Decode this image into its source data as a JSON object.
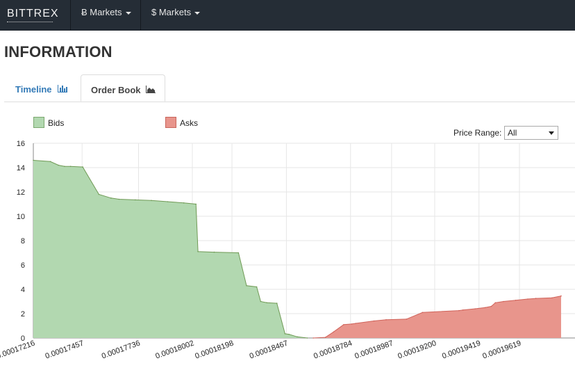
{
  "navbar": {
    "brand": "BITTREX",
    "menus": [
      {
        "label": "Ƀ Markets"
      },
      {
        "label": "$ Markets"
      }
    ]
  },
  "page": {
    "title": "INFORMATION"
  },
  "tabs": [
    {
      "label": "Timeline",
      "icon": "bar-chart-icon",
      "active": false
    },
    {
      "label": "Order Book",
      "icon": "area-chart-icon",
      "active": true
    }
  ],
  "controls": {
    "price_range_label": "Price Range:",
    "price_range_value": "All"
  },
  "colors": {
    "navbar": "#252d36",
    "bids_fill": "#b2d8b0",
    "bids_stroke": "#6f9a55",
    "asks_fill": "#e8958c",
    "asks_stroke": "#d0635a",
    "link": "#337ab7"
  },
  "chart_data": {
    "type": "area",
    "ylim": [
      0,
      16
    ],
    "yticks": [
      0,
      2,
      4,
      6,
      8,
      10,
      12,
      14,
      16
    ],
    "xlim": [
      0.00017216,
      0.00019825
    ],
    "xtick_labels": [
      "0.00017216",
      "0.00017457",
      "0.00017736",
      "0.00018002",
      "0.00018198",
      "0.00018467",
      "0.00018784",
      "0.00018987",
      "0.00019200",
      "0.00019419",
      "0.00019619"
    ],
    "grid": true,
    "legend_position": "top-left",
    "series": [
      {
        "name": "Bids",
        "x": [
          0.00017216,
          0.000173,
          0.0001734,
          0.0001737,
          0.000174,
          0.0001746,
          0.0001754,
          0.000176,
          0.0001764,
          0.0001772,
          0.000178,
          0.0001788,
          0.0001796,
          0.0001802,
          0.0001803,
          0.0001811,
          0.0001823,
          0.0001827,
          0.0001832,
          0.0001834,
          0.0001837,
          0.0001842,
          0.0001846,
          0.0001848,
          0.0001852,
          0.0001857
        ],
        "y": [
          14.6,
          14.5,
          14.2,
          14.1,
          14.1,
          14.05,
          11.8,
          11.5,
          11.4,
          11.35,
          11.3,
          11.2,
          11.1,
          11.0,
          7.1,
          7.05,
          7.0,
          4.3,
          4.2,
          3.0,
          2.9,
          2.85,
          0.35,
          0.3,
          0.1,
          0.0
        ]
      },
      {
        "name": "Asks",
        "x": [
          0.000186,
          0.0001866,
          0.000187,
          0.0001875,
          0.0001879,
          0.0001881,
          0.000189,
          0.0001896,
          0.0001906,
          0.0001914,
          0.0001932,
          0.0001934,
          0.000194,
          0.0001945,
          0.0001948,
          0.000195,
          0.0001954,
          0.000196,
          0.0001966,
          0.000197,
          0.0001978,
          0.00019825
        ],
        "y": [
          0.0,
          0.05,
          0.5,
          1.1,
          1.15,
          1.2,
          1.4,
          1.5,
          1.55,
          2.1,
          2.25,
          2.3,
          2.4,
          2.5,
          2.6,
          2.9,
          3.0,
          3.1,
          3.2,
          3.25,
          3.3,
          3.45
        ]
      }
    ]
  }
}
